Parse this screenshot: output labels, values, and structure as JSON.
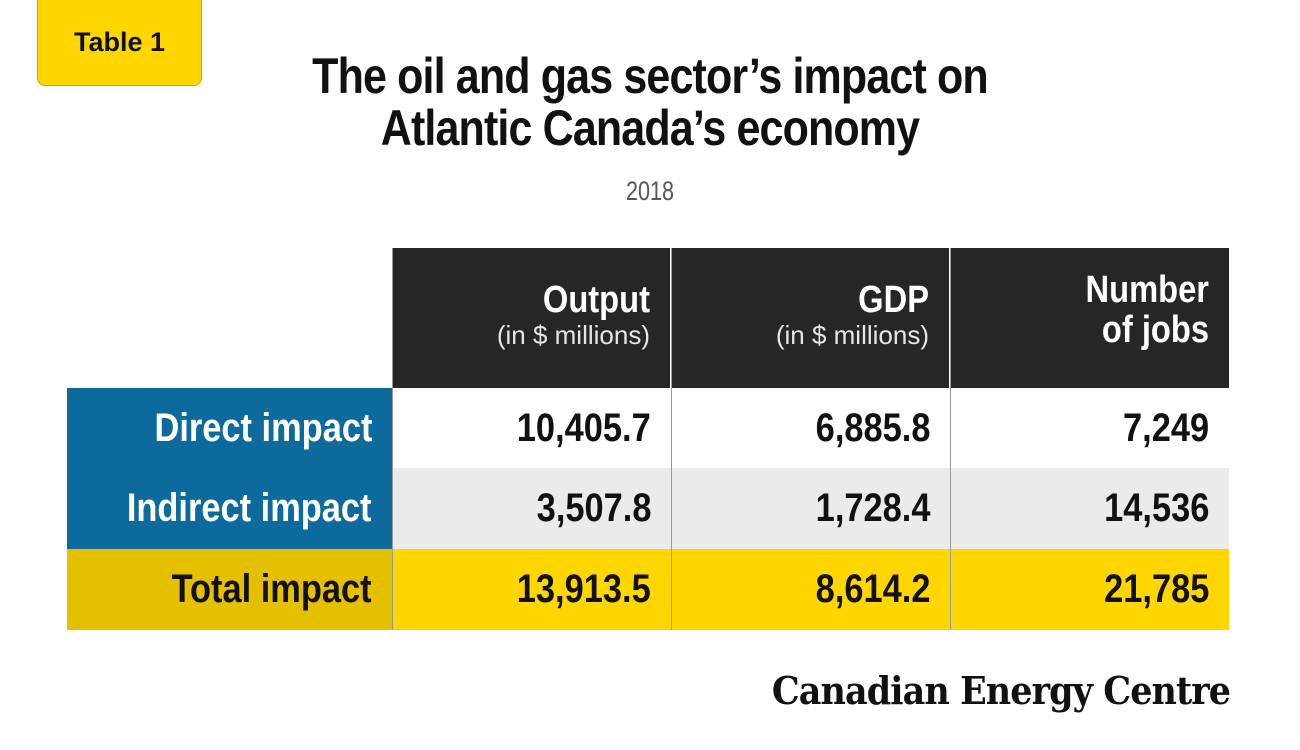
{
  "badge": "Table 1",
  "title": {
    "line1": "The oil and gas sector’s impact on",
    "line2": "Atlantic Canada’s economy"
  },
  "year": "2018",
  "table": {
    "columns": [
      {
        "main": "Output",
        "sub": "(in $ millions)"
      },
      {
        "main": "GDP",
        "sub": "(in $ millions)"
      },
      {
        "main": "Number",
        "sub": "of jobs"
      }
    ],
    "rows": [
      {
        "label": "Direct impact",
        "values": [
          "10,405.7",
          "6,885.8",
          "7,249"
        ]
      },
      {
        "label": "Indirect impact",
        "values": [
          "3,507.8",
          "1,728.4",
          "14,536"
        ]
      },
      {
        "label": "Total impact",
        "values": [
          "13,913.5",
          "8,614.2",
          "21,785"
        ]
      }
    ]
  },
  "brand": "Canadian Energy Centre",
  "colors": {
    "accent_yellow": "#ffd600",
    "row_label_blue": "#0d6a9c",
    "header_dark": "#262626"
  }
}
